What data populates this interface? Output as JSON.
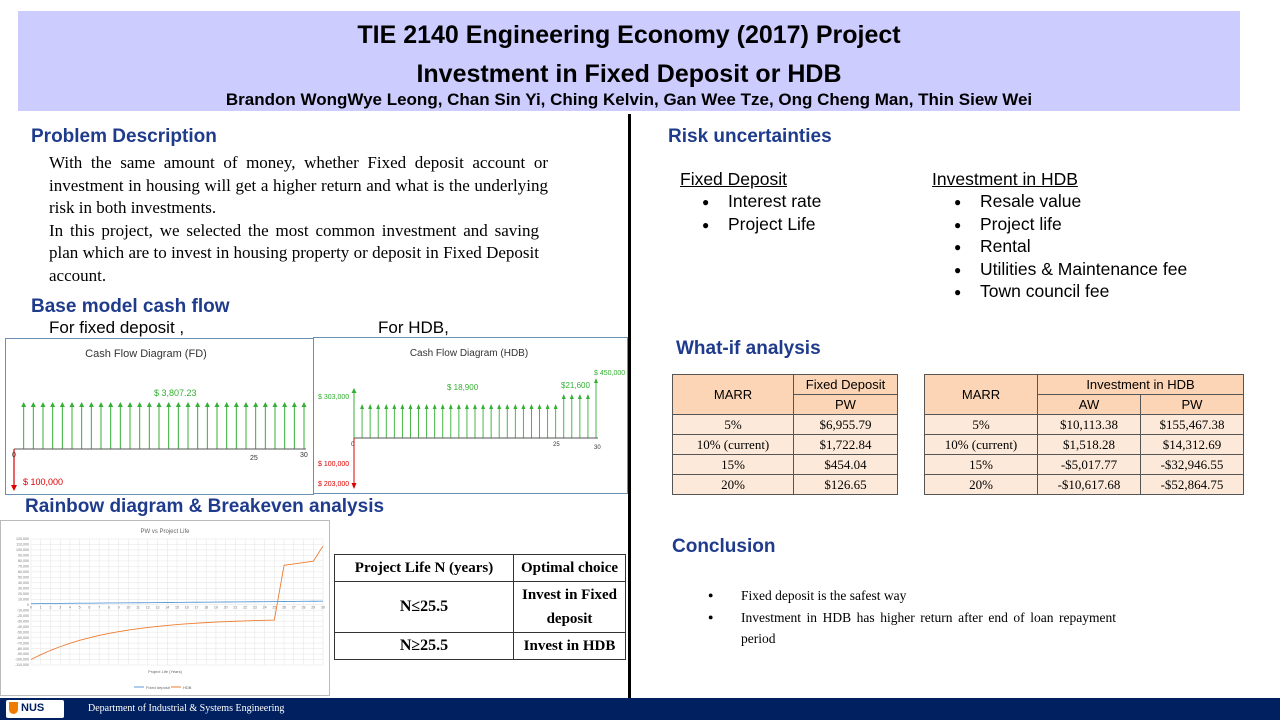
{
  "header": {
    "title_line1": "TIE 2140 Engineering Economy (2017) Project",
    "title_line2": "Investment in Fixed Deposit or HDB",
    "authors": "Brandon WongWye Leong, Chan Sin Yi,  Ching Kelvin,  Gan Wee Tze,  Ong Cheng Man,  Thin Siew Wei"
  },
  "problem": {
    "title": "Problem Description",
    "para1": "With the same amount of money, whether Fixed deposit account or investment in housing will get a higher return and what is the underlying risk in both investments.",
    "para2": "In this project, we selected the most common investment and saving plan which are to invest in housing property or deposit in Fixed Deposit account."
  },
  "base_model": {
    "title": "Base model cash flow",
    "fd_label": "For fixed deposit ,",
    "hdb_label": "For HDB,",
    "fd_diagram": {
      "title": "Cash Flow Diagram (FD)",
      "receipt": "$ 3,807.23",
      "outflow": "$ 100,000",
      "tick0": "0",
      "tick25": "25",
      "tick30": "30"
    },
    "hdb_diagram": {
      "title": "Cash Flow Diagram (HDB)",
      "inflow0": "$ 303,000",
      "rental": "$ 18,900",
      "rental2": "$21,600",
      "resale": "$ 450,000",
      "out1": "$ 100,000",
      "out2": "$ 203,000",
      "tick0": "0",
      "tick25": "25",
      "tick30": "30"
    }
  },
  "rainbow": {
    "title": "Rainbow diagram &  Breakeven analysis",
    "chart_title": "PW vs Project Life",
    "xlabel": "Project Life (Years)",
    "legend_fd": "Fixed deposit",
    "legend_hdb": "HDB",
    "y_ticks": [
      "120,000",
      "110,000",
      "100,000",
      "90,000",
      "80,000",
      "70,000",
      "60,000",
      "50,000",
      "40,000",
      "30,000",
      "20,000",
      "10,000",
      "0",
      "-10,000",
      "-20,000",
      "-30,000",
      "-40,000",
      "-50,000",
      "-60,000",
      "-70,000",
      "-80,000",
      "-90,000",
      "-100,000",
      "-110,000"
    ],
    "x_ticks": [
      "0",
      "1",
      "2",
      "3",
      "4",
      "5",
      "6",
      "7",
      "8",
      "9",
      "10",
      "11",
      "12",
      "13",
      "14",
      "15",
      "16",
      "17",
      "18",
      "19",
      "20",
      "21",
      "22",
      "23",
      "24",
      "25",
      "26",
      "27",
      "28",
      "29",
      "30"
    ],
    "colors": {
      "fd": "#5b9bd5",
      "hdb": "#ed7d31"
    }
  },
  "breakeven_table": {
    "headers": [
      "Project Life N (years)",
      "Optimal choice"
    ],
    "rows": [
      [
        "N≤25.5",
        "Invest in Fixed deposit"
      ],
      [
        "N≥25.5",
        "Invest in HDB"
      ]
    ]
  },
  "risk": {
    "title": "Risk uncertainties",
    "fd_title": "Fixed Deposit",
    "fd_items": [
      "Interest rate",
      "Project Life"
    ],
    "hdb_title": "Investment in HDB",
    "hdb_items": [
      "Resale value",
      "Project life",
      "Rental",
      "Utilities & Maintenance fee",
      "Town council fee"
    ]
  },
  "whatif": {
    "title": "What-if analysis",
    "fd_table": {
      "marr_header": "MARR",
      "group_header": "Fixed Deposit",
      "pw_header": "PW",
      "rows": [
        [
          "5%",
          "$6,955.79"
        ],
        [
          "10% (current)",
          "$1,722.84"
        ],
        [
          "15%",
          "$454.04"
        ],
        [
          "20%",
          "$126.65"
        ]
      ]
    },
    "hdb_table": {
      "marr_header": "MARR",
      "group_header": "Investment in HDB",
      "aw_header": "AW",
      "pw_header": "PW",
      "rows": [
        [
          "5%",
          "$10,113.38",
          "$155,467.38"
        ],
        [
          "10% (current)",
          "$1,518.28",
          "$14,312.69"
        ],
        [
          "15%",
          "-$5,017.77",
          "-$32,946.55"
        ],
        [
          "20%",
          "-$10,617.68",
          "-$52,864.75"
        ]
      ]
    }
  },
  "conclusion": {
    "title": "Conclusion",
    "items": [
      "Fixed deposit is the safest way",
      "Investment in HDB has higher return after end of loan repayment period"
    ]
  },
  "footer": {
    "logo_text": "NUS",
    "department": "Department of Industrial & Systems Engineering"
  }
}
